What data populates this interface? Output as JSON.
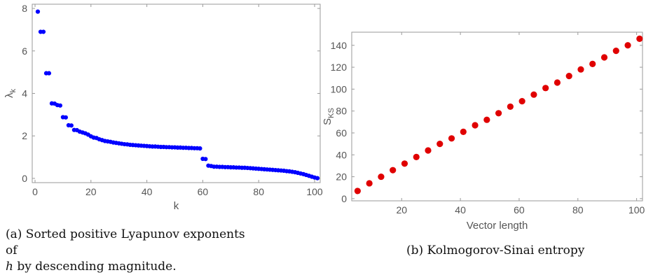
{
  "chart_data": [
    {
      "type": "scatter",
      "panel_caption": {
        "prefix": "(a) Sorted positive Lyapunov exponents of",
        "var": "h",
        "suffix": " by descending magnitude."
      },
      "xlabel": "k",
      "ylabel_base": "λ",
      "ylabel_sub": "k",
      "xlim": [
        -1,
        102
      ],
      "ylim": [
        -0.2,
        8.2
      ],
      "xticks": [
        0,
        20,
        40,
        60,
        80,
        100
      ],
      "yticks": [
        0,
        2,
        4,
        6,
        8
      ],
      "marker_color": "#0000ff",
      "y": [
        7.85,
        6.9,
        6.9,
        4.95,
        4.95,
        3.53,
        3.52,
        3.45,
        3.43,
        2.88,
        2.87,
        2.5,
        2.49,
        2.28,
        2.27,
        2.2,
        2.16,
        2.12,
        2.06,
        1.98,
        1.92,
        1.9,
        1.84,
        1.8,
        1.76,
        1.74,
        1.72,
        1.69,
        1.67,
        1.65,
        1.63,
        1.61,
        1.6,
        1.58,
        1.57,
        1.56,
        1.55,
        1.54,
        1.53,
        1.52,
        1.51,
        1.5,
        1.5,
        1.49,
        1.48,
        1.48,
        1.47,
        1.47,
        1.46,
        1.46,
        1.45,
        1.45,
        1.44,
        1.44,
        1.43,
        1.43,
        1.42,
        1.42,
        1.41,
        0.92,
        0.91,
        0.6,
        0.58,
        0.55,
        0.55,
        0.54,
        0.54,
        0.53,
        0.53,
        0.52,
        0.52,
        0.51,
        0.51,
        0.5,
        0.5,
        0.49,
        0.48,
        0.47,
        0.46,
        0.45,
        0.44,
        0.43,
        0.42,
        0.41,
        0.4,
        0.39,
        0.38,
        0.37,
        0.36,
        0.34,
        0.33,
        0.31,
        0.29,
        0.26,
        0.23,
        0.2,
        0.16,
        0.12,
        0.08,
        0.04,
        0.01
      ]
    },
    {
      "type": "scatter",
      "panel_caption": {
        "prefix": "(b) Kolmogorov-Sinai entropy",
        "var": "",
        "suffix": ""
      },
      "xlabel": "Vector length",
      "ylabel_base": "S",
      "ylabel_sub": "KS",
      "xlim": [
        3,
        102
      ],
      "ylim": [
        -2,
        152
      ],
      "xticks": [
        20,
        40,
        60,
        80,
        100
      ],
      "yticks": [
        0,
        20,
        40,
        60,
        80,
        100,
        120,
        140
      ],
      "marker_color": "#e00000",
      "x": [
        5,
        9,
        13,
        17,
        21,
        25,
        29,
        33,
        37,
        41,
        45,
        49,
        53,
        57,
        61,
        65,
        69,
        73,
        77,
        81,
        85,
        89,
        93,
        97,
        101
      ],
      "y": [
        7,
        14,
        20,
        26,
        32,
        38,
        44,
        50,
        55,
        61,
        67,
        72,
        78,
        84,
        89,
        95,
        101,
        106,
        112,
        118,
        123,
        129,
        135,
        140,
        146
      ]
    }
  ]
}
